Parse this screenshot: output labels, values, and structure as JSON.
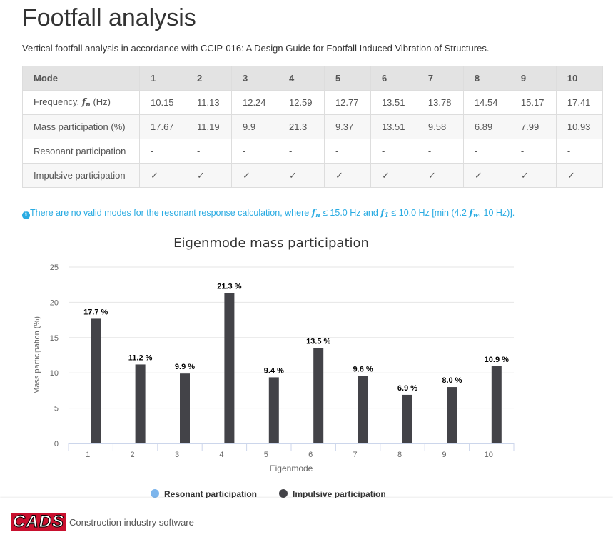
{
  "title": "Footfall analysis",
  "subtitle": "Vertical footfall analysis in accordance with CCIP-016: A Design Guide for Footfall Induced Vibration of Structures.",
  "table": {
    "header": "Mode",
    "modes": [
      "1",
      "2",
      "3",
      "4",
      "5",
      "6",
      "7",
      "8",
      "9",
      "10"
    ],
    "freq_label": {
      "pre": "Frequency, ",
      "sym": "f",
      "subscript": "n",
      "post": " (Hz)"
    },
    "frequency": [
      "10.15",
      "11.13",
      "12.24",
      "12.59",
      "12.77",
      "13.51",
      "13.78",
      "14.54",
      "15.17",
      "17.41"
    ],
    "mass_label": "Mass participation (%)",
    "mass": [
      "17.67",
      "11.19",
      "9.9",
      "21.3",
      "9.37",
      "13.51",
      "9.58",
      "6.89",
      "7.99",
      "10.93"
    ],
    "resonant_label": "Resonant participation",
    "resonant": [
      "-",
      "-",
      "-",
      "-",
      "-",
      "-",
      "-",
      "-",
      "-",
      "-"
    ],
    "impulsive_label": "Impulsive participation",
    "impulsive": [
      "✓",
      "✓",
      "✓",
      "✓",
      "✓",
      "✓",
      "✓",
      "✓",
      "✓",
      "✓"
    ]
  },
  "info": {
    "icon": "info-circle-icon",
    "t1": "There are no valid modes for the resonant response calculation, where ",
    "s1": "f",
    "s1sub": "n",
    "t2": " ≤ 15.0 Hz and ",
    "s2": "f",
    "s2sub": "1",
    "t3": " ≤ 10.0 Hz [min (4.2 ",
    "s3": "f",
    "s3sub": "w",
    "t4": ", 10 Hz)].",
    "color": "#29abe2"
  },
  "chart_data": {
    "type": "bar",
    "title": "Eigenmode mass participation",
    "xlabel": "Eigenmode",
    "ylabel": "Mass participation (%)",
    "categories": [
      "1",
      "2",
      "3",
      "4",
      "5",
      "6",
      "7",
      "8",
      "9",
      "10"
    ],
    "ylim": [
      0,
      25
    ],
    "yticks": [
      0,
      5,
      10,
      15,
      20,
      25
    ],
    "grid": true,
    "series": [
      {
        "name": "Resonant participation",
        "color": "#7cb5ec",
        "values": [
          0,
          0,
          0,
          0,
          0,
          0,
          0,
          0,
          0,
          0
        ]
      },
      {
        "name": "Impulsive participation",
        "color": "#434348",
        "values": [
          17.67,
          11.19,
          9.9,
          21.3,
          9.37,
          13.51,
          9.58,
          6.89,
          7.99,
          10.93
        ]
      }
    ],
    "data_labels": [
      "17.7 %",
      "11.2 %",
      "9.9 %",
      "21.3 %",
      "9.4 %",
      "13.5 %",
      "9.6 %",
      "6.9 %",
      "8.0 %",
      "10.9 %"
    ],
    "legend_position": "bottom"
  },
  "footer": {
    "logo": "CADS",
    "tagline": "Construction industry software"
  }
}
